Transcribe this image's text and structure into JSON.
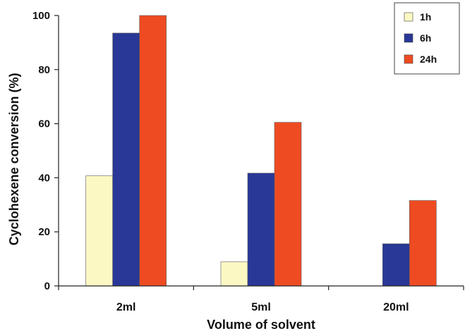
{
  "chart_data": {
    "type": "bar",
    "categories": [
      "2ml",
      "5ml",
      "20ml"
    ],
    "series": [
      {
        "name": "1h",
        "color": "#fcf8c4",
        "values": [
          40.7,
          8.9,
          0
        ]
      },
      {
        "name": "6h",
        "color": "#293896",
        "values": [
          93.5,
          41.7,
          15.6
        ]
      },
      {
        "name": "24h",
        "color": "#ee4b23",
        "values": [
          100,
          60.5,
          31.6
        ]
      }
    ],
    "title": "",
    "xlabel": "Volume of solvent",
    "ylabel": "Cyclohexene conversion (%)",
    "ylim": [
      0,
      100
    ],
    "yticks": [
      0,
      20,
      40,
      60,
      80,
      100
    ],
    "grid": false,
    "legend_position": "top-right"
  }
}
